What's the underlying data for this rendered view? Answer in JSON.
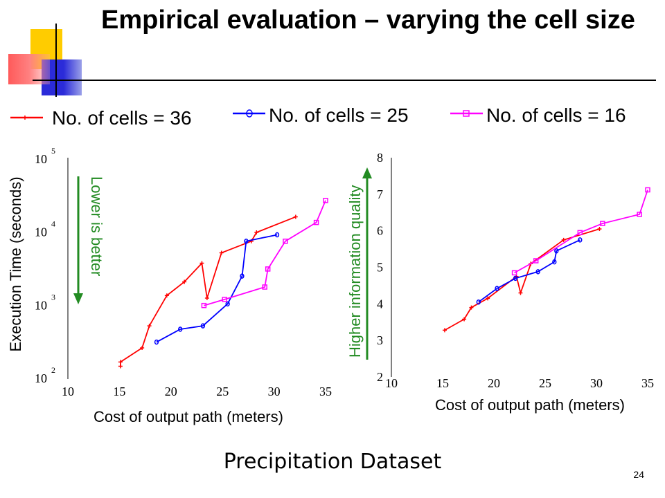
{
  "slide": {
    "title": "Empirical evaluation – varying the cell size",
    "footer": "Precipitation Dataset",
    "page_number": "24"
  },
  "legend": [
    {
      "label": "No. of cells = 36",
      "color": "#ff0000",
      "marker": "plus"
    },
    {
      "label": "No. of cells = 25",
      "color": "#0000ff",
      "marker": "circle"
    },
    {
      "label": "No. of cells = 16",
      "color": "#ff00ff",
      "marker": "square"
    }
  ],
  "annotations": {
    "left": {
      "text": "Lower is better",
      "color": "#228b22"
    },
    "right": {
      "text": "Higher information quality",
      "color": "#228b22"
    }
  },
  "chart_data": [
    {
      "type": "line",
      "xlabel": "Cost of output path (meters)",
      "ylabel": "Execution Time (seconds)",
      "xlim": [
        10,
        35
      ],
      "ylim": [
        100,
        100000
      ],
      "yscale": "log",
      "xticks": [
        "10",
        "15",
        "20",
        "25",
        "30",
        "35"
      ],
      "yticks": [
        {
          "base": "10",
          "exp": "2",
          "value": 100
        },
        {
          "base": "10",
          "exp": "3",
          "value": 1000
        },
        {
          "base": "10",
          "exp": "4",
          "value": 10000
        },
        {
          "base": "10",
          "exp": "5",
          "value": 100000
        }
      ],
      "series": [
        {
          "name": "No. of cells = 36",
          "color": "#ff0000",
          "marker": "plus",
          "points": [
            [
              15.1,
              140
            ],
            [
              15.1,
              160
            ],
            [
              17.2,
              250
            ],
            [
              17.9,
              500
            ],
            [
              19.6,
              1300
            ],
            [
              21.3,
              2000
            ],
            [
              23.0,
              3600
            ],
            [
              23.5,
              1200
            ],
            [
              24.9,
              5000
            ],
            [
              27.8,
              7200
            ],
            [
              28.3,
              9500
            ],
            [
              32.1,
              15500
            ]
          ]
        },
        {
          "name": "No. of cells = 25",
          "color": "#0000ff",
          "marker": "circle",
          "points": [
            [
              18.6,
              300
            ],
            [
              20.9,
              450
            ],
            [
              23.1,
              500
            ],
            [
              25.5,
              1000
            ],
            [
              26.9,
              2400
            ],
            [
              27.3,
              7200
            ],
            [
              30.3,
              8800
            ]
          ]
        },
        {
          "name": "No. of cells = 16",
          "color": "#ff00ff",
          "marker": "square",
          "points": [
            [
              23.2,
              950
            ],
            [
              25.2,
              1150
            ],
            [
              29.1,
              1700
            ],
            [
              29.4,
              3000
            ],
            [
              31.1,
              7200
            ],
            [
              34.1,
              13000
            ],
            [
              35.0,
              26000
            ]
          ]
        }
      ]
    },
    {
      "type": "line",
      "xlabel": "Cost of output path (meters)",
      "ylabel": "",
      "xlim": [
        10,
        35
      ],
      "ylim": [
        2,
        8
      ],
      "yscale": "linear",
      "xticks": [
        "10",
        "15",
        "20",
        "25",
        "30",
        "35"
      ],
      "yticks": [
        "2",
        "3",
        "4",
        "5",
        "6",
        "7",
        "8"
      ],
      "series": [
        {
          "name": "No. of cells = 36",
          "color": "#ff0000",
          "marker": "plus",
          "points": [
            [
              15.2,
              3.28
            ],
            [
              17.1,
              3.58
            ],
            [
              17.8,
              3.9
            ],
            [
              19.4,
              4.15
            ],
            [
              22.2,
              4.75
            ],
            [
              22.6,
              4.3
            ],
            [
              23.6,
              5.1
            ],
            [
              26.8,
              5.75
            ],
            [
              30.3,
              6.05
            ]
          ]
        },
        {
          "name": "No. of cells = 25",
          "color": "#0000ff",
          "marker": "circle",
          "points": [
            [
              18.5,
              4.05
            ],
            [
              20.3,
              4.42
            ],
            [
              22.1,
              4.7
            ],
            [
              24.3,
              4.88
            ],
            [
              25.9,
              5.15
            ],
            [
              26.1,
              5.45
            ],
            [
              28.4,
              5.75
            ]
          ]
        },
        {
          "name": "No. of cells = 16",
          "color": "#ff00ff",
          "marker": "square",
          "points": [
            [
              22.0,
              4.85
            ],
            [
              24.1,
              5.18
            ],
            [
              28.4,
              5.95
            ],
            [
              30.6,
              6.2
            ],
            [
              34.2,
              6.45
            ],
            [
              35.0,
              7.12
            ]
          ]
        }
      ]
    }
  ]
}
